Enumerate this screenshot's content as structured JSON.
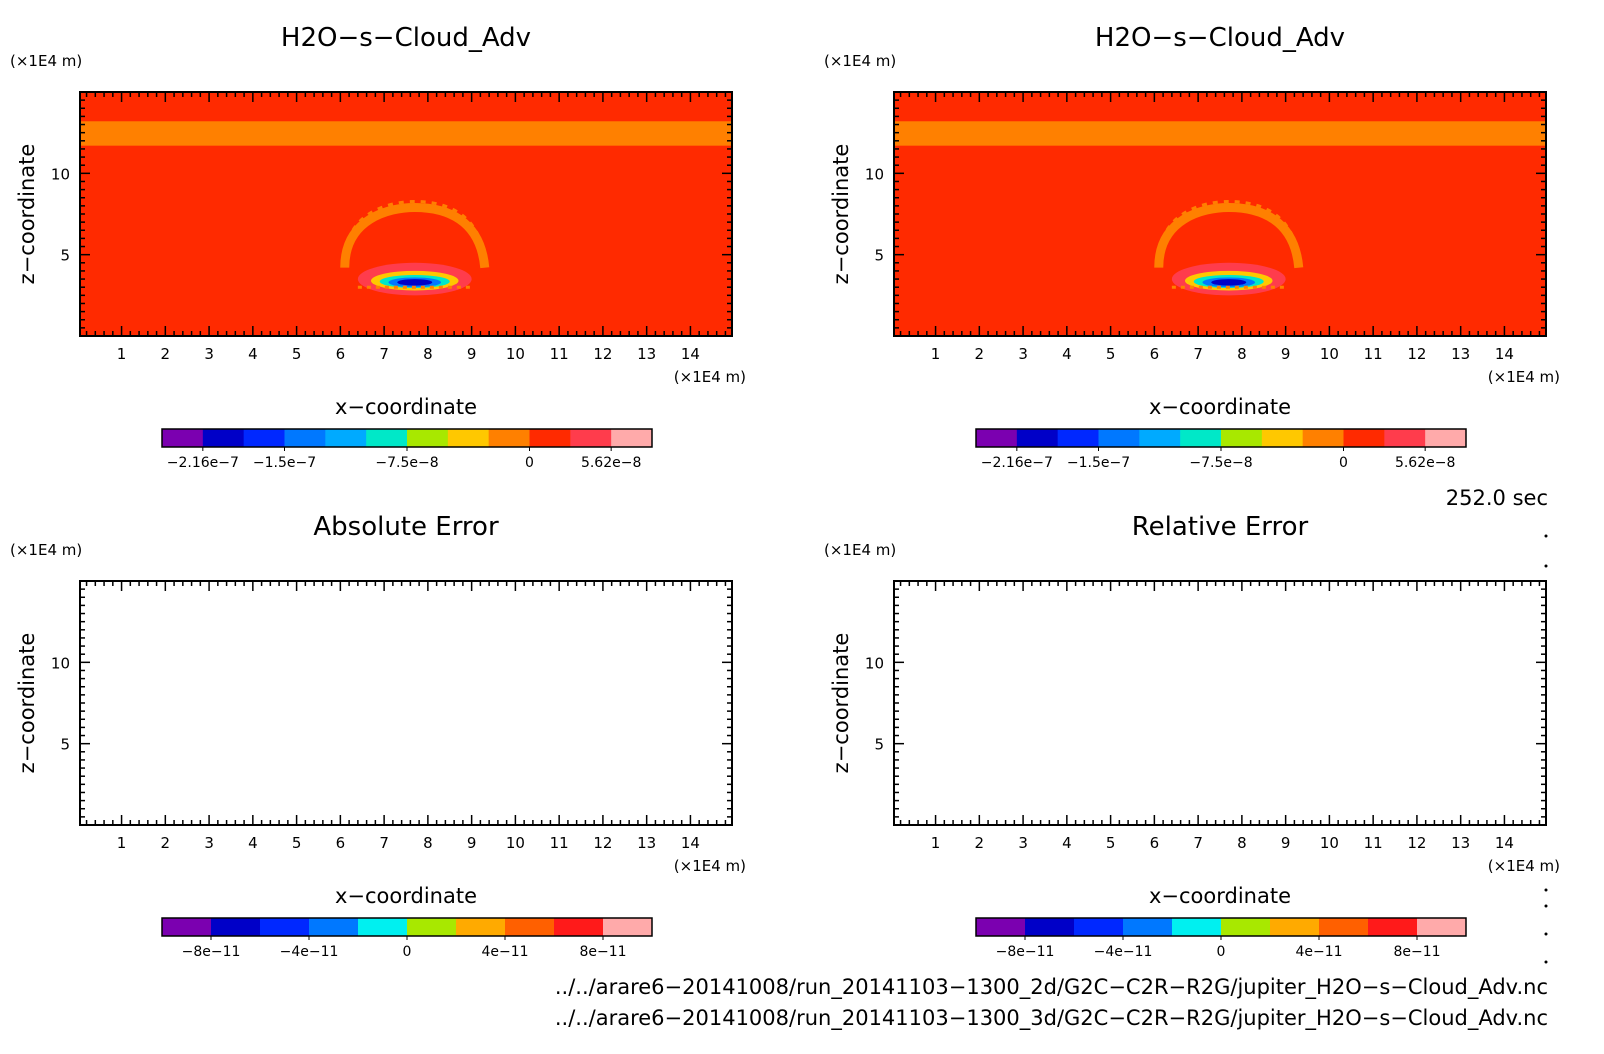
{
  "panels": [
    {
      "id": "tl",
      "title": "H2O−s−Cloud_Adv",
      "xlabel": "x−coordinate",
      "ylabel": "z−coordinate",
      "y_unit": "(×1E4 m)",
      "x_unit": "(×1E4 m)",
      "filled": true
    },
    {
      "id": "tr",
      "title": "H2O−s−Cloud_Adv",
      "xlabel": "x−coordinate",
      "ylabel": "z−coordinate",
      "y_unit": "(×1E4 m)",
      "x_unit": "(×1E4 m)",
      "filled": true
    },
    {
      "id": "bl",
      "title": "Absolute Error",
      "xlabel": "x−coordinate",
      "ylabel": "z−coordinate",
      "y_unit": "(×1E4 m)",
      "x_unit": "(×1E4 m)",
      "filled": false
    },
    {
      "id": "br",
      "title": "Relative Error",
      "xlabel": "x−coordinate",
      "ylabel": "z−coordinate",
      "y_unit": "(×1E4 m)",
      "x_unit": "(×1E4 m)",
      "filled": false
    }
  ],
  "time_label": "252.0 sec",
  "file_paths": [
    "../../arare6−20141008/run_20141103−1300_2d/G2C−C2R−R2G/jupiter_H2O−s−Cloud_Adv.nc",
    "../../arare6−20141008/run_20141103−1300_3d/G2C−C2R−R2G/jupiter_H2O−s−Cloud_Adv.nc"
  ],
  "chart_data": [
    {
      "type": "heatmap",
      "title": "H2O−s−Cloud_Adv",
      "xlabel": "x−coordinate",
      "ylabel": "z−coordinate",
      "x_ticks": [
        1,
        2,
        3,
        4,
        5,
        6,
        7,
        8,
        9,
        10,
        11,
        12,
        13,
        14
      ],
      "y_ticks": [
        5,
        10
      ],
      "xlim": [
        0.05,
        14.95
      ],
      "ylim": [
        0,
        15
      ],
      "colorbar": {
        "tick_labels": [
          "−2.16e−7",
          "−1.5e−7",
          "−7.5e−8",
          "0",
          "5.62e−8"
        ],
        "colors": [
          "#7b00b0",
          "#0000c8",
          "#0028ff",
          "#0078ff",
          "#00aaff",
          "#00e8c8",
          "#a8e800",
          "#ffc800",
          "#ff8000",
          "#ff2a00",
          "#ff3c4c",
          "#ffaaaa"
        ]
      },
      "background_color": "#ff2a00",
      "band": {
        "z": [
          11.7,
          13.2
        ],
        "color": "#ff8000"
      }
    },
    {
      "type": "heatmap",
      "title": "H2O−s−Cloud_Adv",
      "xlabel": "x−coordinate",
      "ylabel": "z−coordinate",
      "x_ticks": [
        1,
        2,
        3,
        4,
        5,
        6,
        7,
        8,
        9,
        10,
        11,
        12,
        13,
        14
      ],
      "y_ticks": [
        5,
        10
      ],
      "xlim": [
        0.05,
        14.95
      ],
      "ylim": [
        0,
        15
      ],
      "colorbar": {
        "tick_labels": [
          "−2.16e−7",
          "−1.5e−7",
          "−7.5e−8",
          "0",
          "5.62e−8"
        ],
        "colors": [
          "#7b00b0",
          "#0000c8",
          "#0028ff",
          "#0078ff",
          "#00aaff",
          "#00e8c8",
          "#a8e800",
          "#ffc800",
          "#ff8000",
          "#ff2a00",
          "#ff3c4c",
          "#ffaaaa"
        ]
      },
      "background_color": "#ff2a00",
      "band": {
        "z": [
          11.7,
          13.2
        ],
        "color": "#ff8000"
      }
    },
    {
      "type": "heatmap",
      "title": "Absolute Error",
      "xlabel": "x−coordinate",
      "ylabel": "z−coordinate",
      "x_ticks": [
        1,
        2,
        3,
        4,
        5,
        6,
        7,
        8,
        9,
        10,
        11,
        12,
        13,
        14
      ],
      "y_ticks": [
        5,
        10
      ],
      "xlim": [
        0.05,
        14.95
      ],
      "ylim": [
        0,
        15
      ],
      "colorbar": {
        "tick_labels": [
          "−8e−11",
          "−4e−11",
          "0",
          "4e−11",
          "8e−11"
        ],
        "colors": [
          "#7b00b0",
          "#0000c8",
          "#0028ff",
          "#0078ff",
          "#00f0f0",
          "#a8e800",
          "#ffaa00",
          "#ff6000",
          "#ff1a1a",
          "#ffaaaa"
        ]
      },
      "values": []
    },
    {
      "type": "heatmap",
      "title": "Relative Error",
      "xlabel": "x−coordinate",
      "ylabel": "z−coordinate",
      "x_ticks": [
        1,
        2,
        3,
        4,
        5,
        6,
        7,
        8,
        9,
        10,
        11,
        12,
        13,
        14
      ],
      "y_ticks": [
        5,
        10
      ],
      "xlim": [
        0.05,
        14.95
      ],
      "ylim": [
        0,
        15
      ],
      "colorbar": {
        "tick_labels": [
          "−8e−11",
          "−4e−11",
          "0",
          "4e−11",
          "8e−11"
        ],
        "colors": [
          "#7b00b0",
          "#0000c8",
          "#0028ff",
          "#0078ff",
          "#00f0f0",
          "#a8e800",
          "#ffaa00",
          "#ff6000",
          "#ff1a1a",
          "#ffaaaa"
        ]
      },
      "values": []
    }
  ]
}
